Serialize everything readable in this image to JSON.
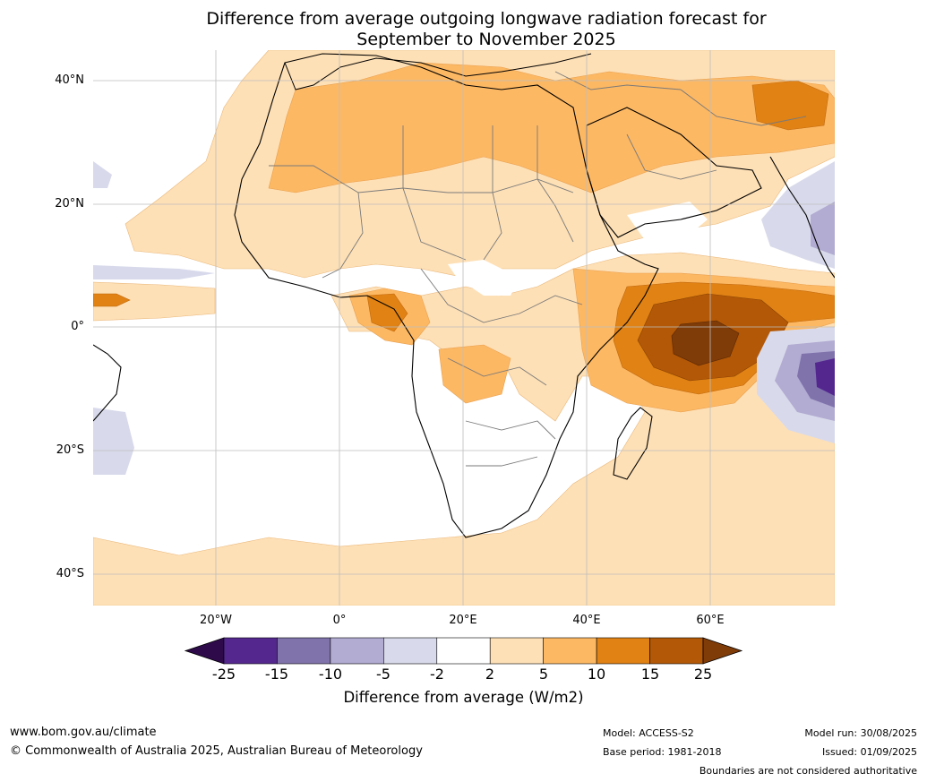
{
  "title": {
    "line1": "Difference from average outgoing longwave radiation forecast for",
    "line2": "September to November 2025"
  },
  "axes": {
    "lat_labels": [
      "40°N",
      "20°N",
      "0°",
      "20°S",
      "40°S"
    ],
    "lon_labels": [
      "20°W",
      "0°",
      "20°E",
      "40°E",
      "60°E"
    ]
  },
  "colorbar": {
    "title": "Difference from average (W/m2)",
    "ticks": [
      "-25",
      "-15",
      "-10",
      "-5",
      "-2",
      "2",
      "5",
      "10",
      "15",
      "25"
    ],
    "colors": [
      "#2e0a4a",
      "#54278f",
      "#8073ac",
      "#b2abd2",
      "#d8daeb",
      "#ffffff",
      "#fee0b6",
      "#fdb863",
      "#e08214",
      "#b35806",
      "#7f3b08"
    ]
  },
  "footer": {
    "url": "www.bom.gov.au/climate",
    "copyright": "© Commonwealth of Australia 2025, Australian Bureau of Meteorology",
    "model": "Model: ACCESS-S2",
    "base_period": "Base period: 1981-2018",
    "model_run": "Model run: 30/08/2025",
    "issued": "Issued: 01/09/2025",
    "disclaimer": "Boundaries are not considered authoritative"
  }
}
